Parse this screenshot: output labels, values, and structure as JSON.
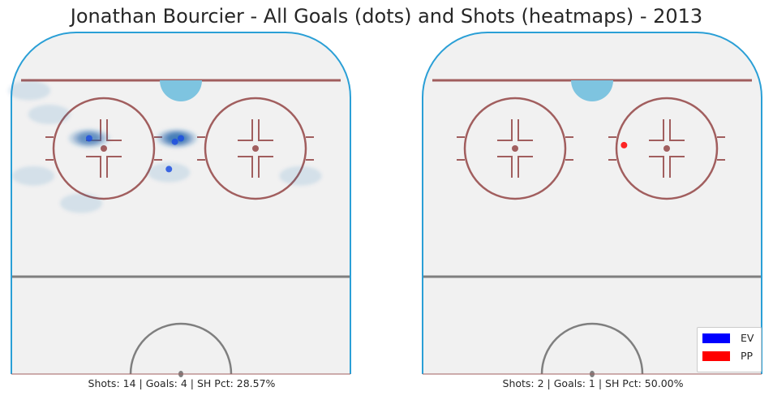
{
  "title": "Jonathan Bourcier - All Goals (dots) and Shots (heatmaps) - 2013",
  "chart_data": [
    {
      "type": "scatter",
      "panel": "EV",
      "caption": "Shots: 14 | Goals: 4 | SH Pct: 28.57%",
      "goals": [
        {
          "x": -23,
          "y": 69
        },
        {
          "x": 0,
          "y": 69
        },
        {
          "x": -1.5,
          "y": 68
        },
        {
          "x": -3,
          "y": 60
        }
      ],
      "shot_density": [
        {
          "x": -23,
          "y": 69,
          "intensity": 0.85
        },
        {
          "x": -1,
          "y": 69,
          "intensity": 1.0
        },
        {
          "x": -3,
          "y": 59,
          "intensity": 0.25
        },
        {
          "x": -33,
          "y": 76,
          "intensity": 0.2
        },
        {
          "x": -38,
          "y": 83,
          "intensity": 0.15
        },
        {
          "x": -37,
          "y": 58,
          "intensity": 0.15
        },
        {
          "x": -25,
          "y": 50,
          "intensity": 0.1
        },
        {
          "x": 30,
          "y": 58,
          "intensity": 0.1
        }
      ],
      "xlim": [
        -42.5,
        42.5
      ],
      "ylim": [
        0,
        100
      ]
    },
    {
      "type": "scatter",
      "panel": "PP",
      "caption": "Shots: 2 | Goals: 1 | SH Pct: 50.00%",
      "goals": [
        {
          "x": 8,
          "y": 67
        }
      ],
      "shot_density": [],
      "xlim": [
        -42.5,
        42.5
      ],
      "ylim": [
        0,
        100
      ]
    }
  ],
  "legend": [
    {
      "label": "EV",
      "color": "#0000ff"
    },
    {
      "label": "PP",
      "color": "#ff0000"
    }
  ],
  "colors": {
    "ice": "#f1f1f1",
    "boards": "#2a9fd6",
    "goal_line": "#a15e5e",
    "circles": "#a15e5e",
    "blue_line": "#7f7f7f",
    "crease": "#7ec4e0",
    "ev_dot": "#1f4fe0",
    "pp_dot": "#ff0000",
    "heat": "#2166ac"
  }
}
